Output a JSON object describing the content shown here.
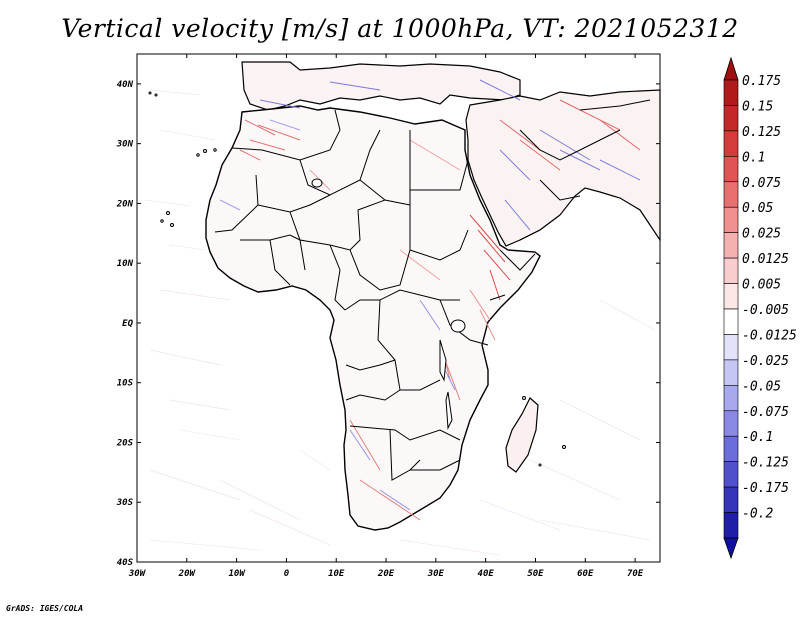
{
  "title": "Vertical velocity [m/s] at 1000hPa, VT: 2021052312",
  "credit": "GrADS: IGES/COLA",
  "map": {
    "lon_range": [
      -30,
      75
    ],
    "lat_range": [
      -40,
      45
    ],
    "lon_ticks": [
      {
        "value": -30,
        "label": "30W"
      },
      {
        "value": -20,
        "label": "20W"
      },
      {
        "value": -10,
        "label": "10W"
      },
      {
        "value": 0,
        "label": "0"
      },
      {
        "value": 10,
        "label": "10E"
      },
      {
        "value": 20,
        "label": "20E"
      },
      {
        "value": 30,
        "label": "30E"
      },
      {
        "value": 40,
        "label": "40E"
      },
      {
        "value": 50,
        "label": "50E"
      },
      {
        "value": 60,
        "label": "60E"
      },
      {
        "value": 70,
        "label": "70E"
      }
    ],
    "lat_ticks": [
      {
        "value": 40,
        "label": "40N"
      },
      {
        "value": 30,
        "label": "30N"
      },
      {
        "value": 20,
        "label": "20N"
      },
      {
        "value": 10,
        "label": "10N"
      },
      {
        "value": 0,
        "label": "EQ"
      },
      {
        "value": -10,
        "label": "10S"
      },
      {
        "value": -20,
        "label": "20S"
      },
      {
        "value": -30,
        "label": "30S"
      },
      {
        "value": -40,
        "label": "40S"
      }
    ]
  },
  "colorbar": {
    "levels": [
      {
        "label": "0.175",
        "color": "#b01a1a"
      },
      {
        "label": "0.15",
        "color": "#c42828"
      },
      {
        "label": "0.125",
        "color": "#d43c3c"
      },
      {
        "label": "0.1",
        "color": "#e05454"
      },
      {
        "label": "0.075",
        "color": "#e87070"
      },
      {
        "label": "0.05",
        "color": "#f09090"
      },
      {
        "label": "0.025",
        "color": "#f5b0b0"
      },
      {
        "label": "0.0125",
        "color": "#f9cdcd"
      },
      {
        "label": "0.005",
        "color": "#fce6e6"
      },
      {
        "label": "-0.005",
        "color": "#ffffff"
      },
      {
        "label": "-0.0125",
        "color": "#e2e2fa"
      },
      {
        "label": "-0.025",
        "color": "#c6c6f4"
      },
      {
        "label": "-0.05",
        "color": "#a8a8ee"
      },
      {
        "label": "-0.075",
        "color": "#8a8ae4"
      },
      {
        "label": "-0.1",
        "color": "#6c6cda"
      },
      {
        "label": "-0.125",
        "color": "#5050cc"
      },
      {
        "label": "-0.175",
        "color": "#3434bc"
      },
      {
        "label": "-0.2",
        "color": "#1e1ea8"
      }
    ],
    "bottom_color": "#1010a0",
    "top_color": "#a01010"
  }
}
